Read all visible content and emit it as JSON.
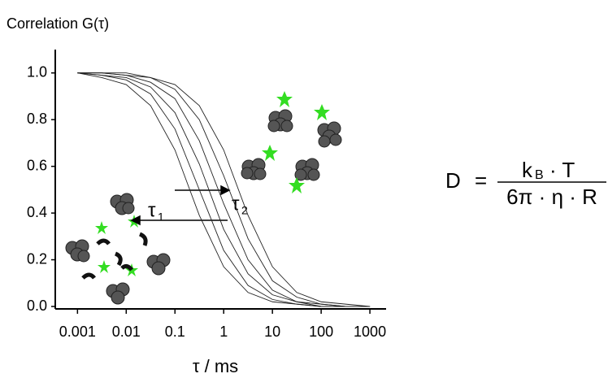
{
  "chart_data": {
    "type": "line",
    "y_label": "Correlation  G(τ)",
    "x_label": "τ / ms",
    "x_log": true,
    "x": [
      0.001,
      0.00316,
      0.01,
      0.0316,
      0.1,
      0.316,
      1,
      3.16,
      10,
      31.6,
      100,
      316,
      1000
    ],
    "series": [
      {
        "color": "#222222",
        "values": [
          1.0,
          0.98,
          0.95,
          0.86,
          0.67,
          0.39,
          0.17,
          0.06,
          0.02,
          0.01,
          0,
          0,
          0
        ]
      },
      {
        "color": "#222222",
        "values": [
          1.0,
          0.99,
          0.97,
          0.91,
          0.76,
          0.5,
          0.24,
          0.09,
          0.03,
          0.01,
          0,
          0,
          0
        ]
      },
      {
        "color": "#222222",
        "values": [
          1.0,
          0.99,
          0.98,
          0.94,
          0.83,
          0.61,
          0.33,
          0.14,
          0.05,
          0.02,
          0,
          0,
          0
        ]
      },
      {
        "color": "#222222",
        "values": [
          1.0,
          1.0,
          0.99,
          0.96,
          0.89,
          0.71,
          0.44,
          0.2,
          0.07,
          0.02,
          0.01,
          0,
          0
        ]
      },
      {
        "color": "#222222",
        "values": [
          1.0,
          1.0,
          0.99,
          0.98,
          0.93,
          0.8,
          0.56,
          0.29,
          0.11,
          0.04,
          0.01,
          0,
          0
        ]
      },
      {
        "color": "#222222",
        "values": [
          1.0,
          1.0,
          1.0,
          0.98,
          0.95,
          0.86,
          0.67,
          0.39,
          0.17,
          0.06,
          0.02,
          0.01,
          0
        ]
      }
    ],
    "xlim": [
      0.00035,
      2150
    ],
    "ylim": [
      0,
      1.1
    ],
    "xticks": [
      0.001,
      0.01,
      0.1,
      1,
      10,
      100,
      1000
    ],
    "yticks": [
      {
        "value": 0,
        "label": "0.0"
      },
      {
        "value": 0.2,
        "label": "0.2"
      },
      {
        "value": 0.4,
        "label": "0.4"
      },
      {
        "value": 0.6,
        "label": "0.6"
      },
      {
        "value": 0.8,
        "label": "0.8"
      },
      {
        "value": 1,
        "label": "1.0"
      }
    ],
    "grid": false,
    "annotations": [
      {
        "text": "τ",
        "sub": "1"
      },
      {
        "text": "τ",
        "sub": "2"
      }
    ],
    "equation": {
      "lhs": "D",
      "equals": "=",
      "numerator": {
        "symbol": "k",
        "sub": "B",
        "rest": "· T"
      },
      "denominator": "6π · η · R"
    }
  }
}
